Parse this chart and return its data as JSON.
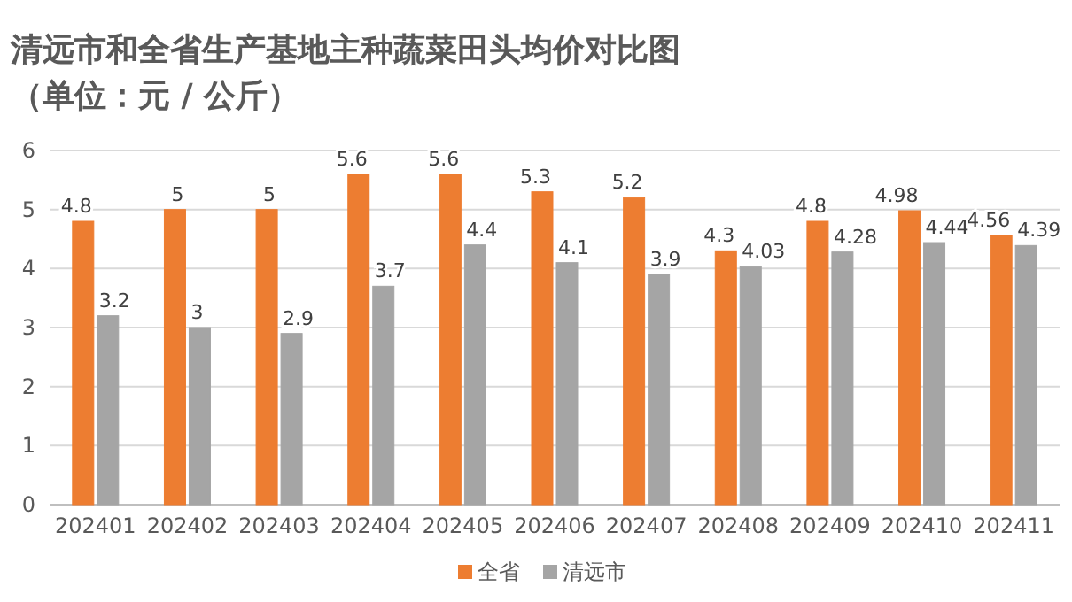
{
  "chart_data": {
    "type": "bar",
    "title": "清远市和全省生产基地主种蔬菜田头均价对比图",
    "subtitle": "（单位：元 / 公斤）",
    "categories": [
      "202401",
      "202402",
      "202403",
      "202404",
      "202405",
      "202406",
      "202407",
      "202408",
      "202409",
      "202410",
      "202411"
    ],
    "series": [
      {
        "name": "全省",
        "color": "#ed7d31",
        "values": [
          4.8,
          5,
          5,
          5.6,
          5.6,
          5.3,
          5.2,
          4.3,
          4.8,
          4.98,
          4.56
        ]
      },
      {
        "name": "清远市",
        "color": "#a5a5a5",
        "values": [
          3.2,
          3,
          2.9,
          3.7,
          4.4,
          4.1,
          3.9,
          4.03,
          4.28,
          4.44,
          4.39
        ]
      }
    ],
    "ylim": [
      0,
      6
    ],
    "yticks": [
      0,
      1,
      2,
      3,
      4,
      5,
      6
    ],
    "grid": "y",
    "legend": "bottom",
    "data_labels": true
  }
}
